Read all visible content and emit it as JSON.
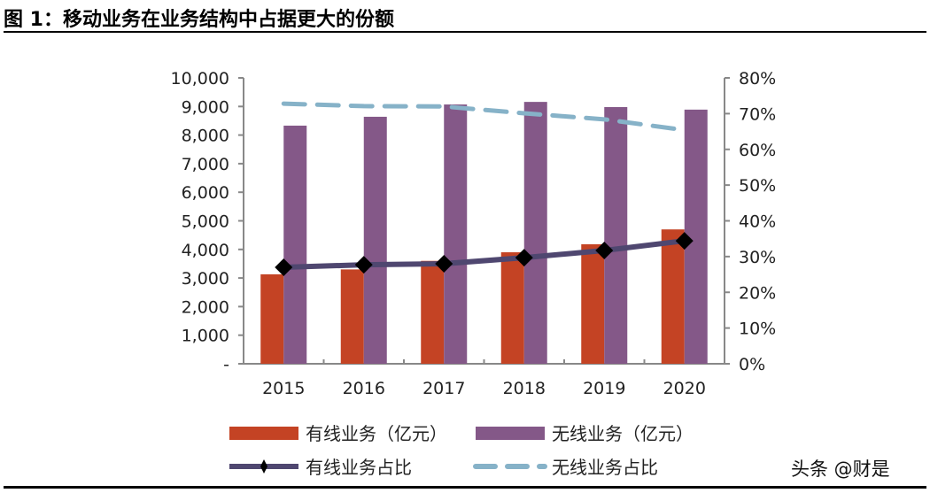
{
  "figure_title": "图 1：移动业务在业务结构中占据更大的份额",
  "watermark": "头条 @财是",
  "colors": {
    "wired_bar": "#c44324",
    "wireless_bar": "#845888",
    "wired_line": "#4f4770",
    "wireless_line": "#86b2c8",
    "marker": "#000000"
  },
  "chart_data": {
    "type": "bar",
    "categories": [
      "2015",
      "2016",
      "2017",
      "2018",
      "2019",
      "2020"
    ],
    "ylim": [
      0,
      10000
    ],
    "y2lim": [
      0,
      0.8
    ],
    "yticks": [
      "-",
      "1,000",
      "2,000",
      "3,000",
      "4,000",
      "5,000",
      "6,000",
      "7,000",
      "8,000",
      "9,000",
      "10,000"
    ],
    "y2ticks": [
      "0%",
      "10%",
      "20%",
      "30%",
      "40%",
      "50%",
      "60%",
      "70%",
      "80%"
    ],
    "legend_position": "bottom",
    "series": [
      {
        "name": "有线业务（亿元）",
        "type": "bar",
        "axis": "left",
        "values": [
          3130,
          3300,
          3600,
          3900,
          4180,
          4700
        ]
      },
      {
        "name": "无线业务（亿元）",
        "type": "bar",
        "axis": "left",
        "values": [
          8330,
          8640,
          9070,
          9160,
          8980,
          8890
        ]
      },
      {
        "name": "有线业务占比",
        "type": "line",
        "axis": "right",
        "marker": "diamond",
        "values": [
          0.27,
          0.277,
          0.28,
          0.297,
          0.317,
          0.344
        ]
      },
      {
        "name": "无线业务占比",
        "type": "line",
        "axis": "right",
        "dashed": true,
        "values": [
          0.728,
          0.721,
          0.72,
          0.701,
          0.684,
          0.654
        ]
      }
    ]
  }
}
